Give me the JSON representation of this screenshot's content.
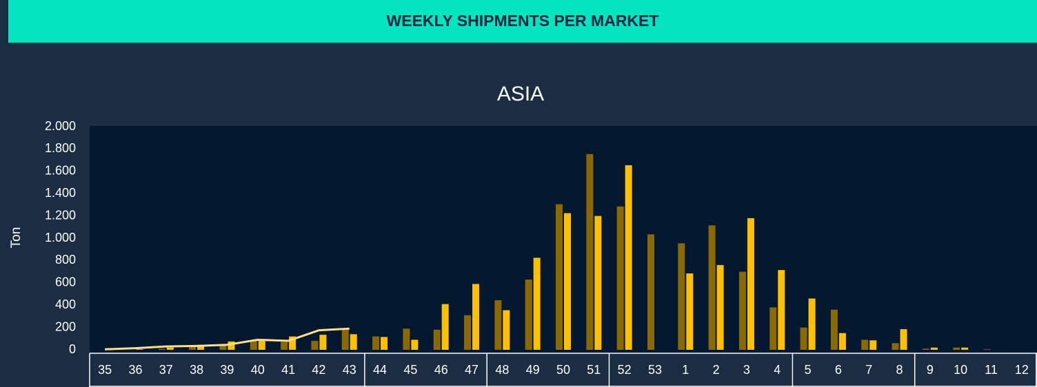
{
  "header": {
    "title": "WEEKLY SHIPMENTS PER MARKET"
  },
  "chart_data": {
    "type": "bar",
    "title": "ASIA",
    "y_label": "Ton",
    "categories": [
      "35",
      "36",
      "37",
      "38",
      "39",
      "40",
      "41",
      "42",
      "43",
      "44",
      "45",
      "46",
      "47",
      "48",
      "49",
      "50",
      "51",
      "52",
      "53",
      "1",
      "2",
      "3",
      "4",
      "5",
      "6",
      "7",
      "8",
      "9",
      "10",
      "11",
      "12"
    ],
    "series": [
      {
        "color": "#8a6a00",
        "values": [
          0,
          0,
          10,
          30,
          40,
          80,
          70,
          80,
          180,
          120,
          190,
          180,
          310,
          445,
          630,
          1305,
          1755,
          1285,
          1035,
          955,
          1115,
          700,
          380,
          200,
          360,
          90,
          60,
          10,
          20,
          5,
          null
        ]
      },
      {
        "color": "#ffc000",
        "values": [
          0,
          5,
          20,
          45,
          75,
          80,
          120,
          135,
          140,
          115,
          90,
          410,
          590,
          355,
          825,
          1225,
          1200,
          1655,
          null,
          685,
          760,
          1180,
          715,
          460,
          150,
          85,
          185,
          20,
          20,
          null,
          null
        ]
      },
      {
        "type": "line",
        "color": "#ffe08a",
        "values": [
          5,
          15,
          30,
          35,
          45,
          90,
          80,
          175,
          190,
          null,
          null,
          null,
          null,
          null,
          null,
          null,
          null,
          null,
          null,
          null,
          null,
          null,
          null,
          null,
          null,
          null,
          null,
          null,
          null,
          null,
          null
        ]
      }
    ],
    "ylim": [
      0,
      2000
    ],
    "yticks": [
      0,
      200,
      400,
      600,
      800,
      {
        "value": 1000,
        "label": "1.000"
      },
      {
        "value": 1200,
        "label": "1.200"
      },
      {
        "value": 1400,
        "label": "1.400"
      },
      {
        "value": 1600,
        "label": "1.600"
      },
      {
        "value": 1800,
        "label": "1.800"
      },
      {
        "value": 2000,
        "label": "2.000"
      }
    ]
  }
}
